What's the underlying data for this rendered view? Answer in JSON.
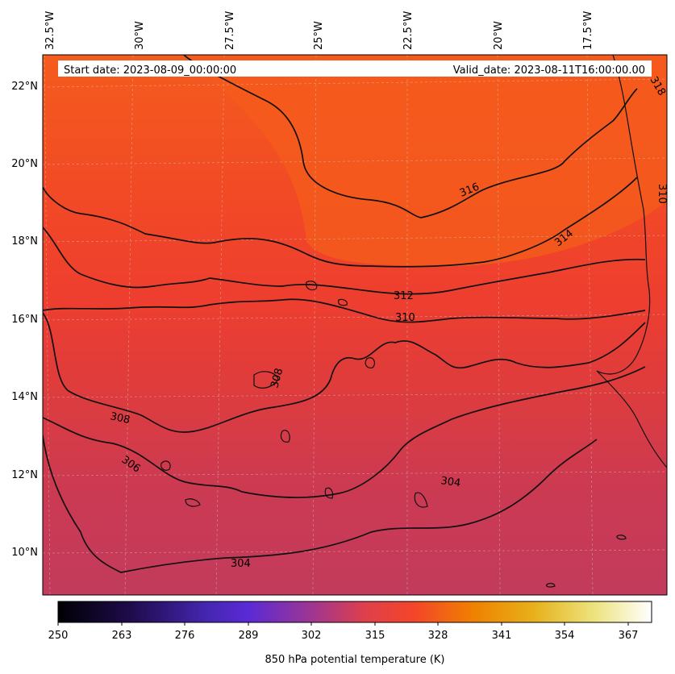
{
  "header": {
    "start_date": "Start date: 2023-08-09_00:00:00",
    "valid_date": "Valid_date: 2023-08-11T16:00:00.00"
  },
  "longitude_labels": [
    "32.5°W",
    "30°W",
    "27.5°W",
    "25°W",
    "22.5°W",
    "20°W",
    "17.5°W"
  ],
  "latitude_labels": [
    "22°N",
    "20°N",
    "18°N",
    "16°N",
    "14°N",
    "12°N",
    "10°N"
  ],
  "contour_labels": [
    "318",
    "316",
    "314",
    "312",
    "310",
    "310",
    "308",
    "308",
    "306",
    "304",
    "304"
  ],
  "colorbar": {
    "label": "850 hPa potential temperature (K)",
    "ticks": [
      "250",
      "263",
      "276",
      "289",
      "302",
      "315",
      "328",
      "341",
      "354",
      "367"
    ],
    "colormap": [
      "#000004",
      "#2b0f5a",
      "#5a2ad6",
      "#8a37b4",
      "#c83c5c",
      "#f4452a",
      "#f08a00",
      "#e8c125",
      "#f0e9a0",
      "#ffffff"
    ]
  },
  "field_colors": {
    "north": "#f45c1d",
    "middle": "#ef4030",
    "south": "#c63a59"
  }
}
